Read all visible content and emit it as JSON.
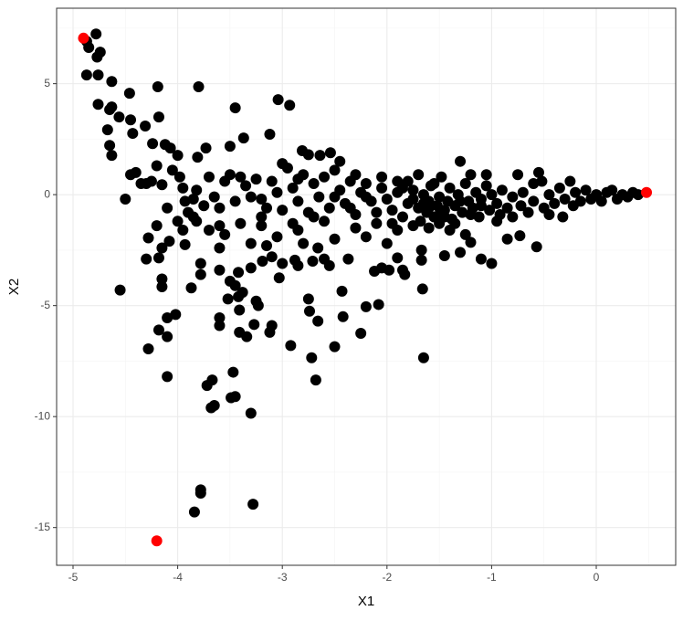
{
  "chart_data": {
    "type": "scatter",
    "x_label": "X1",
    "y_label": "X2",
    "xlim": [
      -5.157,
      0.759
    ],
    "xticks": [
      -5,
      -4,
      -3,
      -2,
      -1,
      0
    ],
    "x_minor_ticks": [
      -4.5,
      -3.5,
      -2.5,
      -1.5,
      -0.5,
      0.5
    ],
    "ylim": [
      -16.7,
      8.4
    ],
    "yticks": [
      -15,
      -10,
      -5,
      0,
      5
    ],
    "y_minor_ticks": [
      -12.5,
      -7.5,
      -2.5,
      2.5,
      7.5
    ],
    "grid": true,
    "series": [
      {
        "color": "#000000",
        "x": [
          -4.78,
          -4.87,
          -4.85,
          -4.74,
          -4.77,
          -4.87,
          -4.76,
          -4.63,
          -4.46,
          -4.19,
          -3.8,
          -4.76,
          -4.63,
          -4.65,
          -4.56,
          -4.45,
          -4.18,
          -4.67,
          -4.31,
          -4.43,
          -4.65,
          -4.63,
          -4.24,
          -4.12,
          -4.07,
          -3.45,
          -3.04,
          -2.93,
          -3.12,
          -3.37,
          -3.5,
          -2.81,
          -2.54,
          -2.64,
          -3.73,
          -3.81,
          -4.0,
          -4.55,
          -4.28,
          -4.18,
          -4.1,
          -4.1,
          -4.02,
          -4.1,
          -3.87,
          -4.15,
          -4.15,
          -4.3,
          -4.18,
          -4.15,
          -4.08,
          -4.2,
          -4.28,
          -3.93,
          -3.95,
          -3.78,
          -3.78,
          -3.6,
          -3.6,
          -3.72,
          -3.67,
          -3.68,
          -3.65,
          -3.47,
          -3.49,
          -3.45,
          -3.3,
          -3.78,
          -3.78,
          -3.84,
          -3.28,
          -3.6,
          -3.6,
          -3.52,
          -3.42,
          -3.41,
          -3.42,
          -3.45,
          -3.38,
          -3.41,
          -3.34,
          -3.27,
          -3.25,
          -3.23,
          -3.12,
          -3.1,
          -3.15,
          -3.19,
          -3.1,
          -3.0,
          -3.03,
          -2.92,
          -2.88,
          -2.85,
          -2.75,
          -2.74,
          -2.72,
          -2.68,
          -2.66,
          -2.71,
          -2.66,
          -2.6,
          -2.55,
          -2.5,
          -2.43,
          -2.42,
          -2.37,
          -2.25,
          -2.2,
          -2.12,
          -2.08,
          -2.05,
          -1.98,
          -1.9,
          -1.85,
          -1.83,
          -1.66,
          -1.65,
          -1.67,
          -1.67,
          -1.45,
          -1.3,
          -1.0,
          -1.1,
          -0.85,
          -0.57,
          -1.2,
          -1.25,
          -0.73,
          -3.3,
          -3.5,
          -3.7,
          -3.55,
          -3.3,
          -3.2,
          -3.05,
          -2.85,
          -2.8,
          -2.5,
          -2.3,
          -2.2,
          -2.0,
          -1.9,
          -1.75,
          -1.5,
          -1.4,
          -4.5,
          -4.45,
          -4.35,
          -4.25,
          -4.2,
          -4.15,
          -4.05,
          -3.98,
          -3.95,
          -3.93,
          -3.85,
          -3.82,
          -3.9,
          -3.82,
          -3.75,
          -3.7,
          -3.65,
          -3.6,
          -3.55,
          -3.5,
          -3.45,
          -3.4,
          -3.35,
          -3.3,
          -3.25,
          -3.2,
          -3.15,
          -3.1,
          -3.05,
          -3.0,
          -2.95,
          -2.9,
          -2.85,
          -2.8,
          -2.75,
          -2.7,
          -2.65,
          -2.6,
          -2.55,
          -2.5,
          -2.45,
          -2.4,
          -2.35,
          -2.3,
          -2.25,
          -2.2,
          -2.15,
          -2.1,
          -2.05,
          -2.0,
          -1.95,
          -1.9,
          -1.85,
          -1.8,
          -1.75,
          -1.7,
          -1.68,
          -1.65,
          -1.62,
          -1.6,
          -1.58,
          -1.55,
          -1.52,
          -1.5,
          -1.48,
          -1.45,
          -1.42,
          -1.4,
          -1.38,
          -1.35,
          -1.32,
          -1.3,
          -1.28,
          -1.25,
          -1.22,
          -1.2,
          -1.18,
          -1.15,
          -1.12,
          -1.1,
          -1.05,
          -1.02,
          -1.0,
          -0.95,
          -0.92,
          -0.9,
          -0.85,
          -0.8,
          -0.75,
          -0.72,
          -0.7,
          -0.65,
          -0.6,
          -0.55,
          -0.52,
          -0.5,
          -0.45,
          -0.4,
          -0.35,
          -0.32,
          -0.3,
          -0.25,
          -0.22,
          -0.2,
          -0.15,
          -0.1,
          -0.05,
          0.0,
          0.05,
          0.1,
          0.15,
          0.2,
          0.25,
          0.3,
          0.35,
          0.4,
          -1.6,
          -1.7,
          -1.8,
          -1.95,
          -2.1,
          -2.6,
          -2.75,
          -3.0,
          -2.45,
          -2.3,
          -2.05,
          -1.55,
          -1.05,
          -1.9,
          -1.3,
          -1.45,
          -1.6,
          -1.75,
          -1.2,
          -1.35,
          -0.95,
          -2.35,
          -2.5,
          -2.7,
          -2.9,
          -3.2,
          -3.4,
          -3.6,
          -3.85,
          -4.0,
          -4.1,
          -4.3,
          -4.4,
          -2.85,
          -2.2,
          -1.85,
          -1.65,
          -1.5,
          -1.1,
          -0.8,
          -0.6,
          -0.45
        ],
        "values": [
          7.24,
          6.91,
          6.63,
          6.42,
          6.2,
          5.39,
          5.39,
          5.1,
          4.57,
          4.86,
          4.86,
          4.07,
          3.95,
          3.83,
          3.5,
          3.37,
          3.5,
          2.92,
          3.09,
          2.76,
          2.22,
          1.77,
          2.3,
          2.26,
          2.1,
          3.91,
          4.28,
          4.03,
          2.72,
          2.55,
          2.18,
          1.98,
          1.89,
          1.77,
          2.1,
          1.69,
          1.77,
          -4.3,
          -6.95,
          -6.1,
          -6.4,
          -5.55,
          -5.4,
          -8.2,
          -4.2,
          -4.15,
          -3.8,
          -2.9,
          -2.85,
          -2.4,
          -2.1,
          -1.4,
          -1.95,
          -2.25,
          -1.6,
          -3.1,
          -3.6,
          -3.4,
          -2.4,
          -8.6,
          -8.35,
          -9.6,
          -9.5,
          -8.0,
          -9.15,
          -9.1,
          -9.85,
          -13.3,
          -13.45,
          -14.3,
          -13.95,
          -5.9,
          -5.55,
          -4.7,
          -4.6,
          -6.2,
          -3.5,
          -4.1,
          -4.4,
          -5.2,
          -6.4,
          -5.85,
          -4.8,
          -5.0,
          -6.2,
          -5.9,
          -2.3,
          -3.0,
          -2.8,
          -3.1,
          -3.75,
          -6.8,
          -2.95,
          -3.2,
          -4.7,
          -5.25,
          -7.35,
          -8.35,
          -5.7,
          -3.0,
          -2.4,
          -2.9,
          -3.2,
          -6.85,
          -4.35,
          -5.5,
          -2.9,
          -6.25,
          -5.05,
          -3.45,
          -4.95,
          -3.3,
          -3.4,
          -2.85,
          -3.4,
          -3.6,
          -4.25,
          -7.35,
          -2.95,
          -2.5,
          -2.75,
          -2.6,
          -3.1,
          -2.9,
          -2.0,
          -2.35,
          -2.15,
          -1.8,
          -1.85,
          -3.3,
          -3.9,
          -1.6,
          -1.8,
          -2.2,
          -1.4,
          -1.9,
          -1.6,
          -2.2,
          -2.0,
          -1.5,
          -1.9,
          -2.2,
          -1.6,
          -1.4,
          -1.3,
          -1.6,
          -0.2,
          0.9,
          0.5,
          0.6,
          1.3,
          0.45,
          1.1,
          0.8,
          0.3,
          -0.3,
          -0.2,
          0.2,
          -0.8,
          -1.2,
          -0.5,
          0.8,
          -0.1,
          -0.6,
          0.6,
          0.9,
          -0.3,
          0.8,
          0.4,
          -0.1,
          0.7,
          -0.2,
          -0.6,
          0.6,
          0.1,
          -0.7,
          1.2,
          0.3,
          -0.3,
          0.9,
          -0.8,
          0.5,
          -0.1,
          0.8,
          -0.6,
          1.1,
          0.2,
          -0.4,
          0.6,
          -0.9,
          0.1,
          0.5,
          -0.3,
          -0.8,
          0.3,
          -0.2,
          -0.7,
          0.1,
          -1.0,
          -0.4,
          0.2,
          -0.6,
          -1.2,
          0.0,
          -0.8,
          -0.3,
          0.4,
          -1.0,
          -0.5,
          -0.1,
          0.8,
          -0.7,
          -0.3,
          0.3,
          -1.1,
          -0.5,
          0.0,
          1.5,
          -0.8,
          0.5,
          -0.3,
          0.9,
          -0.6,
          0.1,
          -1.0,
          -0.2,
          0.4,
          -0.7,
          0.0,
          -0.4,
          -0.9,
          0.2,
          -0.6,
          -0.1,
          0.9,
          -0.5,
          0.1,
          -0.8,
          -0.3,
          1.0,
          0.6,
          -0.6,
          0.0,
          -0.4,
          0.3,
          -1.0,
          -0.2,
          0.6,
          -0.5,
          0.1,
          -0.3,
          0.2,
          -0.2,
          0.0,
          -0.3,
          0.1,
          0.2,
          -0.2,
          0.0,
          -0.1,
          0.1,
          0.0,
          -1.5,
          0.9,
          0.6,
          -1.3,
          -1.3,
          -1.2,
          1.8,
          1.4,
          1.5,
          0.9,
          0.8,
          0.5,
          0.9,
          0.6,
          -0.3,
          -1.0,
          -0.6,
          -0.2,
          -0.9,
          -1.3,
          -1.2,
          -0.6,
          -0.1,
          -1.0,
          -1.3,
          -1.0,
          -1.3,
          -1.4,
          -1.0,
          -1.2,
          -0.6,
          0.5,
          1.0,
          0.7,
          -0.1,
          0.3,
          -0.4,
          -0.9,
          -0.5,
          -1.0,
          0.5,
          -0.9
        ]
      },
      {
        "color": "#ff0000",
        "x": [
          -4.9,
          -4.2,
          0.48
        ],
        "values": [
          7.05,
          -15.6,
          0.1
        ]
      }
    ]
  }
}
